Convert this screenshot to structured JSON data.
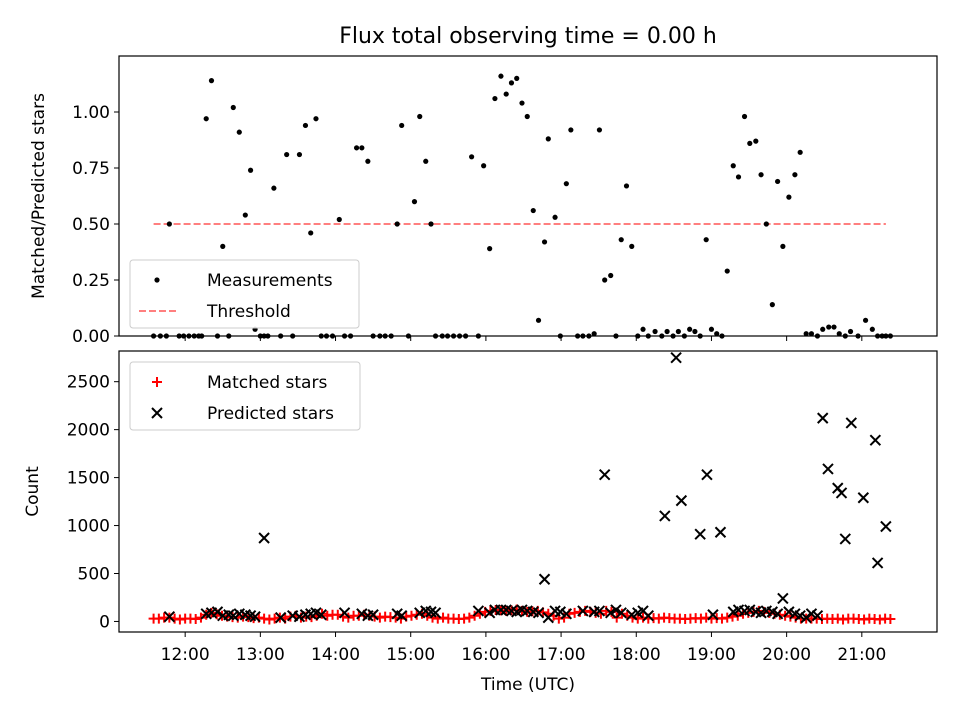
{
  "title": "Flux total observing time = 0.00 h",
  "chart_data": [
    {
      "type": "scatter",
      "ylabel": "Matched/Predicted stars",
      "xlim": [
        11.12,
        22.0
      ],
      "ylim": [
        0,
        1.25
      ],
      "yticks": [
        0,
        0.25,
        0.5,
        0.75,
        1.0
      ],
      "ytick_labels": [
        "0.00",
        "0.25",
        "0.50",
        "0.75",
        "1.00"
      ],
      "legend": {
        "placement": "lower-left",
        "entries": [
          "Measurements",
          "Threshold"
        ]
      },
      "threshold": {
        "name": "Threshold",
        "y": 0.5,
        "x_range": [
          11.58,
          21.32
        ],
        "color": "#ff7f7f"
      },
      "series": [
        {
          "name": "Measurements",
          "color": "#000000",
          "x": [
            11.58,
            11.67,
            11.75,
            11.79,
            11.92,
            11.98,
            12.05,
            12.12,
            12.18,
            12.22,
            12.28,
            12.35,
            12.43,
            12.5,
            12.58,
            12.64,
            12.72,
            12.8,
            12.87,
            12.93,
            13.0,
            13.05,
            13.1,
            13.18,
            13.27,
            13.35,
            13.43,
            13.52,
            13.6,
            13.67,
            13.74,
            13.81,
            13.88,
            13.96,
            14.05,
            14.12,
            14.2,
            14.28,
            14.35,
            14.43,
            14.5,
            14.59,
            14.66,
            14.74,
            14.82,
            14.88,
            14.97,
            15.05,
            15.12,
            15.2,
            15.27,
            15.33,
            15.42,
            15.49,
            15.57,
            15.65,
            15.73,
            15.81,
            15.9,
            15.97,
            16.05,
            16.12,
            16.2,
            16.27,
            16.34,
            16.41,
            16.48,
            16.55,
            16.63,
            16.7,
            16.78,
            16.83,
            16.92,
            16.99,
            17.07,
            17.13,
            17.22,
            17.29,
            17.37,
            17.44,
            17.51,
            17.58,
            17.66,
            17.73,
            17.8,
            17.87,
            17.94,
            18.02,
            18.09,
            18.16,
            18.25,
            18.34,
            18.41,
            18.49,
            18.56,
            18.64,
            18.71,
            18.78,
            18.85,
            18.93,
            19.0,
            19.07,
            19.14,
            19.21,
            19.29,
            19.36,
            19.44,
            19.51,
            19.59,
            19.66,
            19.73,
            19.81,
            19.88,
            19.95,
            20.03,
            20.11,
            20.18,
            20.26,
            20.33,
            20.41,
            20.48,
            20.56,
            20.63,
            20.7,
            20.78,
            20.85,
            20.95,
            21.05,
            21.14,
            21.21,
            21.27,
            21.32,
            21.38
          ],
          "y": [
            0.0,
            0.0,
            0.0,
            0.5,
            0.0,
            0.0,
            0.0,
            0.0,
            0.0,
            0.0,
            0.97,
            1.14,
            0.0,
            0.4,
            0.0,
            1.02,
            0.91,
            0.54,
            0.74,
            0.03,
            0.0,
            0.0,
            0.0,
            0.66,
            0.0,
            0.81,
            0.0,
            0.81,
            0.94,
            0.46,
            0.97,
            0.0,
            0.0,
            0.0,
            0.52,
            0.0,
            0.0,
            0.84,
            0.84,
            0.78,
            0.0,
            0.0,
            0.0,
            0.0,
            0.5,
            0.94,
            0.0,
            0.6,
            0.98,
            0.78,
            0.5,
            0.0,
            0.0,
            0.0,
            0.0,
            0.0,
            0.0,
            0.8,
            0.0,
            0.76,
            0.39,
            1.06,
            1.16,
            1.08,
            1.13,
            1.15,
            1.04,
            0.98,
            0.56,
            0.07,
            0.42,
            0.88,
            0.53,
            0.0,
            0.68,
            0.92,
            0.0,
            0.0,
            0.0,
            0.01,
            0.92,
            0.25,
            0.27,
            0.0,
            0.43,
            0.67,
            0.4,
            0.0,
            0.03,
            0.0,
            0.02,
            0.0,
            0.02,
            0.0,
            0.02,
            0.0,
            0.03,
            0.02,
            0.0,
            0.43,
            0.03,
            0.01,
            0.0,
            0.29,
            0.76,
            0.71,
            0.98,
            0.86,
            0.87,
            0.72,
            0.5,
            0.14,
            0.69,
            0.4,
            0.62,
            0.72,
            0.82,
            0.01,
            0.01,
            0.0,
            0.03,
            0.04,
            0.04,
            0.01,
            0.0,
            0.02,
            0.0,
            0.07,
            0.03,
            0.0,
            0.0,
            0.0,
            0.0
          ]
        }
      ]
    },
    {
      "type": "scatter",
      "ylabel": "Count",
      "xlabel": "Time (UTC)",
      "xlim": [
        11.12,
        22.0
      ],
      "ylim": [
        -110,
        2820
      ],
      "yticks": [
        0,
        500,
        1000,
        1500,
        2000,
        2500
      ],
      "ytick_labels": [
        "0",
        "500",
        "1000",
        "1500",
        "2000",
        "2500"
      ],
      "xticks": [
        12,
        13,
        14,
        15,
        16,
        17,
        18,
        19,
        20,
        21
      ],
      "xtick_labels": [
        "12:00",
        "13:00",
        "14:00",
        "15:00",
        "16:00",
        "17:00",
        "18:00",
        "19:00",
        "20:00",
        "21:00"
      ],
      "legend": {
        "placement": "upper-left",
        "entries": [
          "Matched stars",
          "Predicted stars"
        ]
      },
      "series": [
        {
          "name": "Matched stars",
          "color": "#ff0000",
          "marker": "plus",
          "x": [
            11.58,
            11.65,
            11.72,
            11.79,
            11.86,
            11.93,
            12.0,
            12.07,
            12.14,
            12.21,
            12.28,
            12.35,
            12.42,
            12.49,
            12.56,
            12.63,
            12.7,
            12.77,
            12.84,
            12.91,
            12.98,
            13.05,
            13.12,
            13.19,
            13.26,
            13.33,
            13.4,
            13.47,
            13.54,
            13.61,
            13.68,
            13.75,
            13.82,
            13.89,
            13.96,
            14.03,
            14.1,
            14.17,
            14.24,
            14.31,
            14.38,
            14.45,
            14.52,
            14.59,
            14.66,
            14.73,
            14.8,
            14.87,
            14.94,
            15.01,
            15.08,
            15.15,
            15.22,
            15.29,
            15.36,
            15.43,
            15.5,
            15.57,
            15.64,
            15.71,
            15.78,
            15.85,
            15.92,
            15.99,
            16.06,
            16.13,
            16.2,
            16.27,
            16.34,
            16.41,
            16.48,
            16.55,
            16.62,
            16.69,
            16.76,
            16.83,
            16.9,
            16.97,
            17.04,
            17.11,
            17.18,
            17.25,
            17.32,
            17.39,
            17.46,
            17.53,
            17.6,
            17.67,
            17.74,
            17.81,
            17.88,
            17.95,
            18.02,
            18.09,
            18.16,
            18.23,
            18.3,
            18.37,
            18.44,
            18.51,
            18.58,
            18.65,
            18.72,
            18.79,
            18.86,
            18.93,
            19.0,
            19.07,
            19.14,
            19.21,
            19.28,
            19.35,
            19.42,
            19.49,
            19.56,
            19.63,
            19.7,
            19.77,
            19.84,
            19.91,
            19.98,
            20.05,
            20.12,
            20.19,
            20.26,
            20.33,
            20.4,
            20.47,
            20.54,
            20.61,
            20.68,
            20.75,
            20.82,
            20.89,
            20.96,
            21.03,
            21.1,
            21.17,
            21.24,
            21.31,
            21.38
          ],
          "y": [
            30,
            30,
            40,
            40,
            30,
            20,
            30,
            30,
            25,
            40,
            70,
            90,
            75,
            60,
            50,
            45,
            40,
            50,
            45,
            35,
            40,
            30,
            20,
            30,
            40,
            30,
            50,
            60,
            40,
            50,
            45,
            60,
            80,
            60,
            70,
            70,
            50,
            40,
            60,
            60,
            70,
            60,
            50,
            40,
            50,
            45,
            40,
            30,
            50,
            60,
            70,
            80,
            60,
            40,
            30,
            40,
            30,
            30,
            25,
            30,
            40,
            60,
            80,
            100,
            110,
            120,
            115,
            110,
            115,
            125,
            110,
            100,
            105,
            110,
            95,
            80,
            60,
            30,
            40,
            80,
            90,
            100,
            110,
            100,
            90,
            80,
            110,
            100,
            40,
            80,
            60,
            40,
            30,
            40,
            30,
            35,
            30,
            40,
            35,
            30,
            30,
            25,
            30,
            35,
            30,
            40,
            30,
            35,
            30,
            40,
            50,
            60,
            80,
            90,
            100,
            110,
            100,
            90,
            80,
            70,
            60,
            50,
            40,
            30,
            30,
            30,
            30,
            25,
            30,
            25,
            30,
            20,
            30,
            30,
            25,
            20,
            30,
            25,
            20,
            30,
            25
          ]
        },
        {
          "name": "Predicted stars",
          "color": "#000000",
          "marker": "x",
          "x": [
            11.79,
            12.28,
            12.35,
            12.43,
            12.5,
            12.58,
            12.64,
            12.72,
            12.8,
            12.87,
            12.93,
            13.05,
            13.27,
            13.43,
            13.52,
            13.6,
            13.67,
            13.74,
            13.81,
            14.12,
            14.35,
            14.43,
            14.5,
            14.82,
            14.88,
            15.12,
            15.2,
            15.27,
            15.33,
            15.9,
            16.05,
            16.12,
            16.2,
            16.27,
            16.34,
            16.41,
            16.48,
            16.55,
            16.63,
            16.7,
            16.78,
            16.83,
            16.92,
            16.99,
            17.07,
            17.29,
            17.44,
            17.51,
            17.58,
            17.66,
            17.73,
            17.8,
            17.94,
            18.02,
            18.09,
            18.16,
            18.38,
            18.53,
            18.6,
            18.85,
            18.94,
            19.02,
            19.12,
            19.29,
            19.36,
            19.44,
            19.51,
            19.59,
            19.66,
            19.73,
            19.81,
            19.88,
            19.95,
            20.03,
            20.11,
            20.18,
            20.26,
            20.33,
            20.41,
            20.48,
            20.55,
            20.68,
            20.73,
            20.78,
            20.86,
            21.02,
            21.18,
            21.21,
            21.32
          ],
          "y": [
            50,
            80,
            90,
            100,
            60,
            70,
            60,
            80,
            70,
            60,
            50,
            870,
            40,
            60,
            50,
            70,
            80,
            90,
            70,
            90,
            80,
            60,
            70,
            80,
            60,
            90,
            110,
            100,
            90,
            110,
            90,
            120,
            120,
            120,
            110,
            100,
            120,
            110,
            100,
            90,
            440,
            40,
            110,
            100,
            80,
            110,
            100,
            110,
            1530,
            90,
            120,
            90,
            70,
            90,
            110,
            60,
            1100,
            2750,
            1260,
            910,
            1530,
            70,
            930,
            100,
            120,
            110,
            120,
            100,
            90,
            110,
            100,
            80,
            240,
            100,
            80,
            60,
            40,
            80,
            60,
            2120,
            1590,
            1390,
            1340,
            860,
            2070,
            1290,
            1890,
            610,
            990
          ]
        }
      ]
    }
  ]
}
